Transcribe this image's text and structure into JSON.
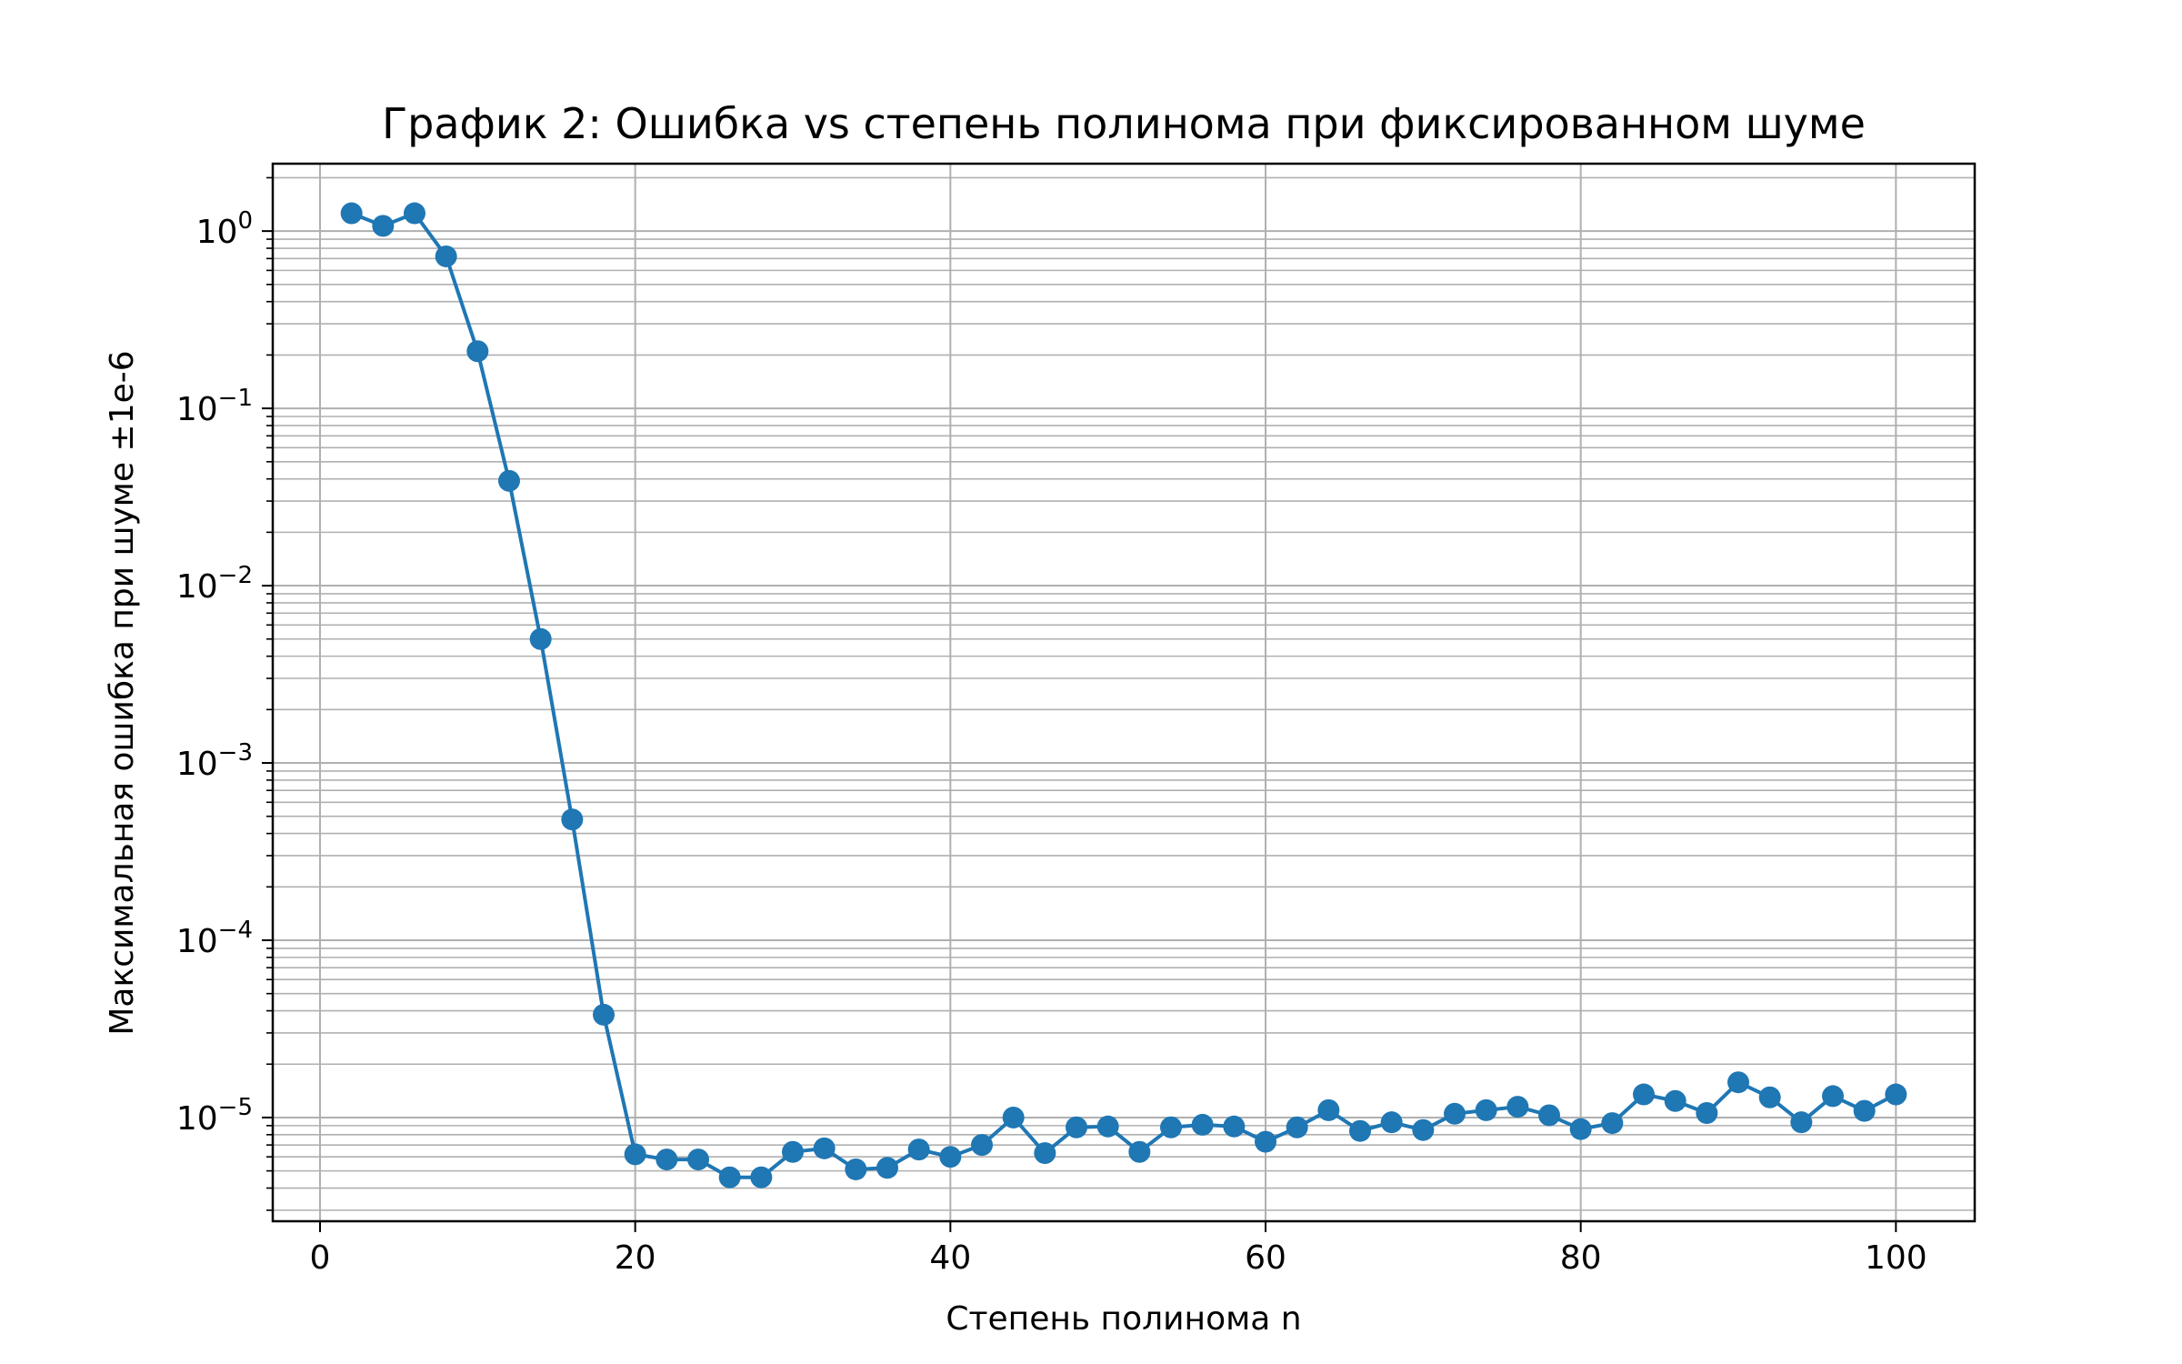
{
  "chart_data": {
    "type": "line",
    "title": "График 2: Ошибка vs степень полинома при фиксированном шуме",
    "xlabel": "Степень полинома n",
    "ylabel": "Максимальная ошибка при шуме ±1e-6",
    "yscale": "log",
    "xlim": [
      -3,
      105
    ],
    "ylim": [
      2.6e-06,
      2.4
    ],
    "grid": true,
    "x_ticks": [
      {
        "value": 0,
        "label": "0"
      },
      {
        "value": 20,
        "label": "20"
      },
      {
        "value": 40,
        "label": "40"
      },
      {
        "value": 60,
        "label": "60"
      },
      {
        "value": 80,
        "label": "80"
      },
      {
        "value": 100,
        "label": "100"
      }
    ],
    "y_ticks": [
      {
        "value": 1,
        "base": "10",
        "exp": "0"
      },
      {
        "value": 0.1,
        "base": "10",
        "exp": "−1"
      },
      {
        "value": 0.01,
        "base": "10",
        "exp": "−2"
      },
      {
        "value": 0.001,
        "base": "10",
        "exp": "−3"
      },
      {
        "value": 0.0001,
        "base": "10",
        "exp": "−4"
      },
      {
        "value": 1e-05,
        "base": "10",
        "exp": "−5"
      }
    ],
    "series": [
      {
        "color": "#1f77b4",
        "marker": "circle",
        "x": [
          2,
          4,
          6,
          8,
          10,
          12,
          14,
          16,
          18,
          20,
          22,
          24,
          26,
          28,
          30,
          32,
          34,
          36,
          38,
          40,
          42,
          44,
          46,
          48,
          50,
          52,
          54,
          56,
          58,
          60,
          62,
          64,
          66,
          68,
          70,
          72,
          74,
          76,
          78,
          80,
          82,
          84,
          86,
          88,
          90,
          92,
          94,
          96,
          98,
          100
        ],
        "y": [
          1.26,
          1.07,
          1.26,
          0.72,
          0.21,
          0.039,
          0.005,
          0.00048,
          3.8e-05,
          6.2e-06,
          5.8e-06,
          5.8e-06,
          4.6e-06,
          4.6e-06,
          6.4e-06,
          6.7e-06,
          5.1e-06,
          5.2e-06,
          6.6e-06,
          6e-06,
          7e-06,
          1e-05,
          6.3e-06,
          8.8e-06,
          8.9e-06,
          6.4e-06,
          8.8e-06,
          9.1e-06,
          8.9e-06,
          7.3e-06,
          8.8e-06,
          1.1e-05,
          8.4e-06,
          9.4e-06,
          8.5e-06,
          1.05e-05,
          1.1e-05,
          1.15e-05,
          1.03e-05,
          8.6e-06,
          9.3e-06,
          1.35e-05,
          1.24e-05,
          1.06e-05,
          1.58e-05,
          1.3e-05,
          9.4e-06,
          1.32e-05,
          1.09e-05,
          1.35e-05
        ]
      }
    ]
  }
}
